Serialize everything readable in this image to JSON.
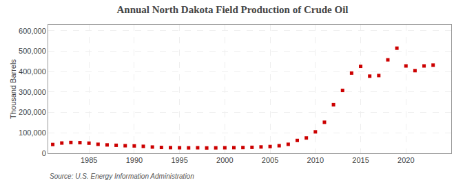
{
  "chart_data": {
    "type": "scatter",
    "title": "Annual North Dakota Field Production of Crude Oil",
    "ylabel": "Thousand Barrels",
    "annotations": [
      "Source: U.S. Energy Information Administration"
    ],
    "x": [
      1981,
      1982,
      1983,
      1984,
      1985,
      1986,
      1987,
      1988,
      1989,
      1990,
      1991,
      1992,
      1993,
      1994,
      1995,
      1996,
      1997,
      1998,
      1999,
      2000,
      2001,
      2002,
      2003,
      2004,
      2005,
      2006,
      2007,
      2008,
      2009,
      2010,
      2011,
      2012,
      2013,
      2014,
      2015,
      2016,
      2017,
      2018,
      2019,
      2020,
      2021,
      2022,
      2023
    ],
    "values": [
      43100,
      50200,
      52800,
      52000,
      49500,
      44000,
      41000,
      39000,
      37000,
      36000,
      34000,
      30500,
      28500,
      27500,
      27000,
      26500,
      27000,
      26000,
      26500,
      27000,
      27500,
      28000,
      29000,
      31000,
      33000,
      37000,
      44000,
      63000,
      75000,
      105000,
      152000,
      238000,
      308000,
      393000,
      426000,
      378000,
      381000,
      458000,
      515000,
      428000,
      405000,
      428000,
      432000
    ],
    "color": "#cc0000",
    "marker": "square",
    "xlim": [
      1980.5,
      2025
    ],
    "ylim": [
      0,
      630000
    ],
    "xticks": [
      1985,
      1990,
      1995,
      2000,
      2005,
      2010,
      2015,
      2020
    ],
    "yticks": [
      0,
      {
        "value": 100000,
        "label": "100,000"
      },
      {
        "value": 200000,
        "label": "200,000"
      },
      {
        "value": 300000,
        "label": "300,000"
      },
      {
        "value": 400000,
        "label": "400,000"
      },
      {
        "value": 500000,
        "label": "500,000"
      },
      {
        "value": 600000,
        "label": "600,000"
      }
    ],
    "grid": true
  }
}
